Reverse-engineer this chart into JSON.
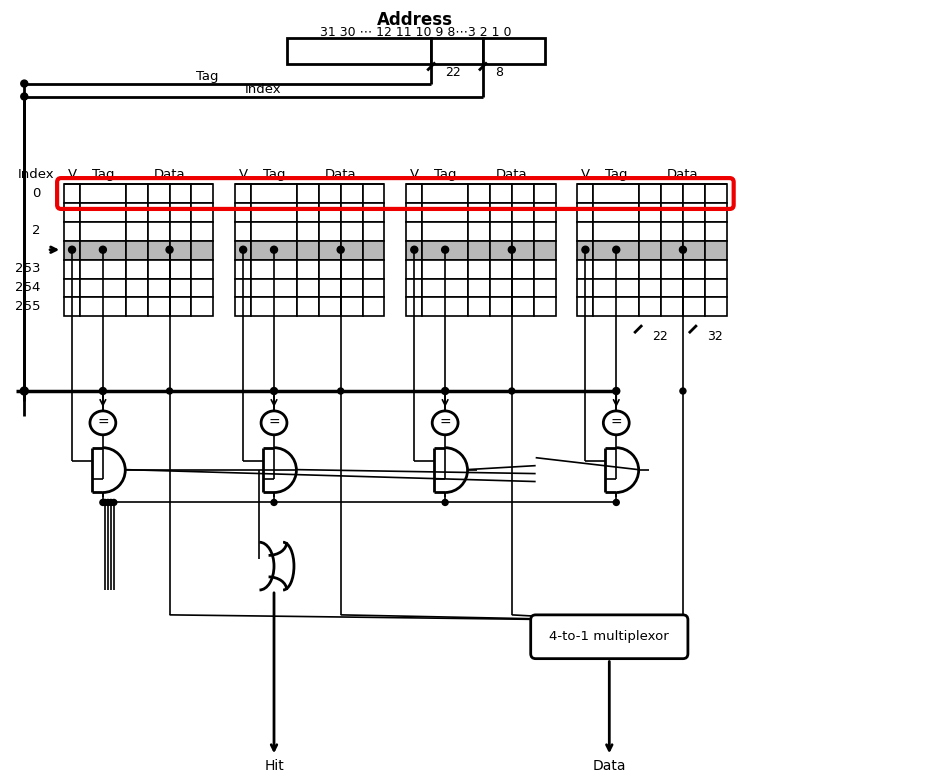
{
  "title": "Address",
  "addr_label": "31 30 ⋯ 12 11 10 9 8⋯3 2 1 0",
  "mux_label": "4-to-1 multiplexor",
  "hit_label": "Hit",
  "data_label": "Data",
  "bit22_top": "22",
  "bit8_top": "8",
  "bit22_right": "22",
  "bit32_right": "32",
  "gray_color": "#b8b8b8",
  "red_color": "#ee0000",
  "lw_thin": 1.2,
  "lw_thick": 2.0,
  "lw_red": 3.0
}
